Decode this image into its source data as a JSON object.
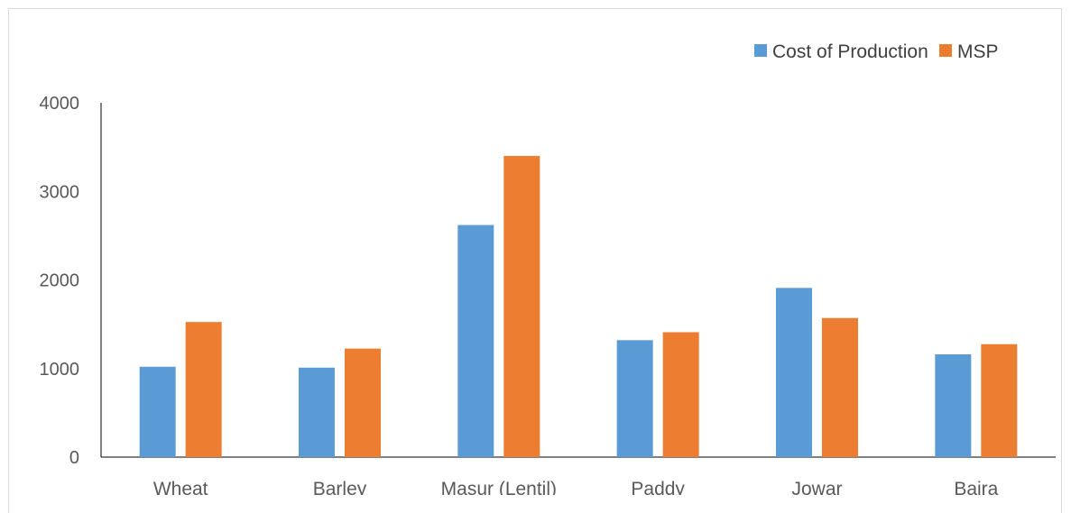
{
  "chart_data": {
    "type": "bar",
    "categories": [
      "Wheat",
      "Barley",
      "Masur (Lentil)",
      "Paddy",
      "Jowar",
      "Bajra"
    ],
    "series": [
      {
        "name": "Cost of Production",
        "color": "#5b9bd5",
        "values": [
          1020,
          1010,
          2620,
          1320,
          1910,
          1160
        ]
      },
      {
        "name": "MSP",
        "color": "#ed7d31",
        "values": [
          1525,
          1225,
          3400,
          1410,
          1570,
          1275
        ]
      }
    ],
    "yticks": [
      0,
      1000,
      2000,
      3000,
      4000
    ],
    "ylim": [
      0,
      4000
    ],
    "legend_position": "top-right",
    "grid": false
  }
}
